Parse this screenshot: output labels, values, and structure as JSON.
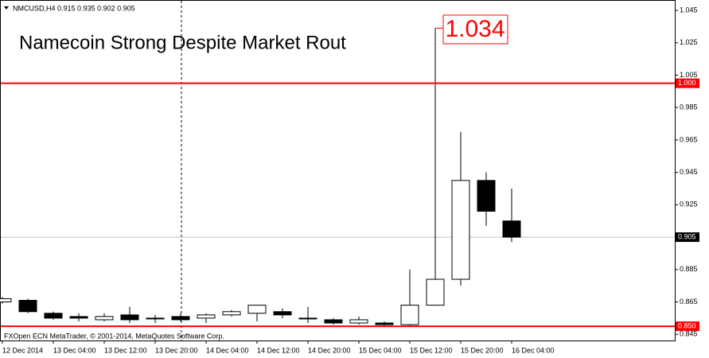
{
  "chart_data": {
    "type": "candlestick",
    "header": "NMCUSD,H4  0.915 0.935 0.902 0.905",
    "title": "Namecoin Strong Despite Market Rout",
    "footer": "FXOpen ECN MetaTrader, © 2001-2014, MetaQuotes Software Corp.",
    "categories": [
      "12 Dec 2014",
      null,
      "13 Dec 04:00",
      null,
      "13 Dec 12:00",
      null,
      "13 Dec 20:00",
      null,
      "14 Dec 04:00",
      null,
      "14 Dec 12:00",
      null,
      "14 Dec 20:00",
      null,
      "15 Dec 04:00",
      null,
      "15 Dec 12:00",
      null,
      "15 Dec 20:00",
      null,
      "16 Dec 04:00"
    ],
    "open": [
      0.865,
      0.866,
      0.858,
      0.856,
      0.854,
      0.857,
      0.855,
      0.856,
      0.855,
      0.857,
      0.858,
      0.859,
      0.855,
      0.854,
      0.852,
      0.852,
      0.851,
      0.863,
      0.879,
      0.94,
      0.915
    ],
    "high": [
      0.868,
      0.867,
      0.859,
      0.858,
      0.858,
      0.862,
      0.857,
      0.858,
      0.858,
      0.86,
      0.863,
      0.861,
      0.862,
      0.855,
      0.856,
      0.853,
      0.885,
      1.034,
      0.97,
      0.945,
      0.935
    ],
    "low": [
      0.864,
      0.858,
      0.854,
      0.853,
      0.853,
      0.852,
      0.852,
      0.853,
      0.852,
      0.856,
      0.853,
      0.855,
      0.852,
      0.851,
      0.851,
      0.85,
      0.85,
      0.863,
      0.875,
      0.912,
      0.902
    ],
    "close": [
      0.867,
      0.859,
      0.855,
      0.855,
      0.856,
      0.854,
      0.855,
      0.854,
      0.857,
      0.859,
      0.863,
      0.857,
      0.855,
      0.852,
      0.854,
      0.851,
      0.863,
      0.879,
      0.94,
      0.921,
      0.905
    ],
    "up_color": "#ffffff",
    "down_color": "#000000",
    "ylim": [
      0.8412,
      1.0514
    ],
    "yticks": [
      1.045,
      1.025,
      1.005,
      0.985,
      0.965,
      0.945,
      0.925,
      0.885,
      0.865,
      0.845
    ],
    "hlines": [
      {
        "value": 1,
        "label": "1.000",
        "color": "#ff0000"
      },
      {
        "value": 0.85,
        "label": "0.850",
        "color": "#ff0000"
      }
    ],
    "current_price": {
      "value": 0.905,
      "label": "0.905",
      "color": "#c0c0c0"
    },
    "peak_label": {
      "value": 1.034,
      "label": "1.034",
      "color": "#ff0000"
    }
  }
}
